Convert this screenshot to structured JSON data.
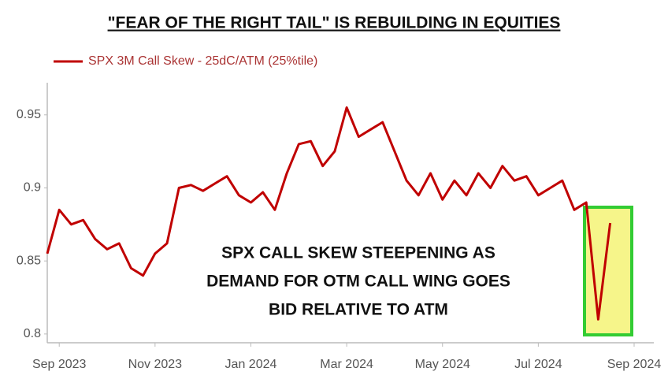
{
  "chart_data": {
    "type": "line",
    "title": "\"FEAR OF THE RIGHT TAIL\" IS REBUILDING IN EQUITIES",
    "annotation": [
      "SPX CALL SKEW STEEPENING AS",
      "DEMAND FOR OTM CALL WING GOES",
      "BID RELATIVE TO ATM"
    ],
    "categories": [
      null,
      "Sep 2023",
      null,
      null,
      null,
      null,
      null,
      null,
      null,
      "Nov 2023",
      null,
      null,
      null,
      null,
      null,
      null,
      null,
      "Jan 2024",
      null,
      null,
      null,
      null,
      null,
      null,
      null,
      "Mar 2024",
      null,
      null,
      null,
      null,
      null,
      null,
      null,
      "May 2024",
      null,
      null,
      null,
      null,
      null,
      null,
      null,
      "Jul 2024",
      null,
      null,
      null,
      null,
      null,
      null,
      null,
      "Sep 2024"
    ],
    "series": [
      {
        "name": "SPX 3M Call Skew - 25dC/ATM (25%tile)",
        "color": "#c00000",
        "values": [
          0.855,
          0.885,
          0.875,
          0.878,
          0.865,
          0.858,
          0.862,
          0.845,
          0.84,
          0.855,
          0.862,
          0.9,
          0.902,
          0.898,
          0.903,
          0.908,
          0.895,
          0.89,
          0.897,
          0.885,
          0.91,
          0.93,
          0.932,
          0.915,
          0.925,
          0.955,
          0.935,
          0.94,
          0.945,
          0.925,
          0.905,
          0.895,
          0.91,
          0.892,
          0.905,
          0.895,
          0.91,
          0.9,
          0.915,
          0.905,
          0.908,
          0.895,
          0.9,
          0.905,
          0.885,
          0.89,
          0.81,
          0.876,
          null,
          null
        ]
      }
    ],
    "ylim": [
      0.794,
      0.972
    ],
    "yticks": [
      0.8,
      0.85,
      0.9,
      0.95
    ],
    "grid": false,
    "legend": "top-left"
  }
}
